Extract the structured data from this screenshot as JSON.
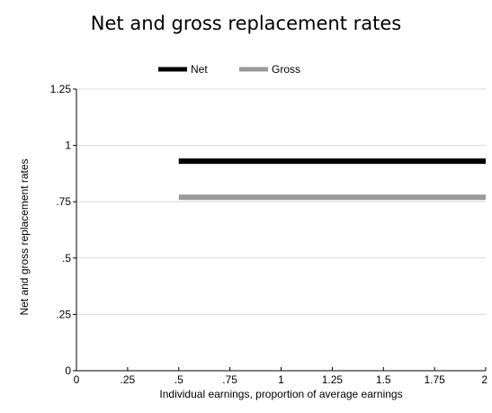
{
  "chart_data": {
    "type": "line",
    "title": "Net and gross replacement rates",
    "xlabel": "Individual earnings, proportion of average earnings",
    "ylabel": "Net and gross replacement rates",
    "xlim": [
      0,
      2
    ],
    "ylim": [
      0,
      1.25
    ],
    "x_ticks": [
      0,
      0.25,
      0.5,
      0.75,
      1,
      1.25,
      1.5,
      1.75,
      2
    ],
    "x_tick_labels": [
      "0",
      ".25",
      ".5",
      ".75",
      "1",
      "1.25",
      "1.5",
      "1.75",
      "2"
    ],
    "y_ticks": [
      0,
      0.25,
      0.5,
      0.75,
      1,
      1.25
    ],
    "y_tick_labels": [
      "0",
      ".25",
      ".5",
      ".75",
      "1",
      "1.25"
    ],
    "grid": "horizontal",
    "legend_position": "top",
    "series": [
      {
        "name": "Net",
        "color": "#000000",
        "x": [
          0.5,
          2
        ],
        "y": [
          0.93,
          0.93
        ]
      },
      {
        "name": "Gross",
        "color": "#999999",
        "x": [
          0.5,
          2
        ],
        "y": [
          0.77,
          0.77
        ]
      }
    ]
  }
}
